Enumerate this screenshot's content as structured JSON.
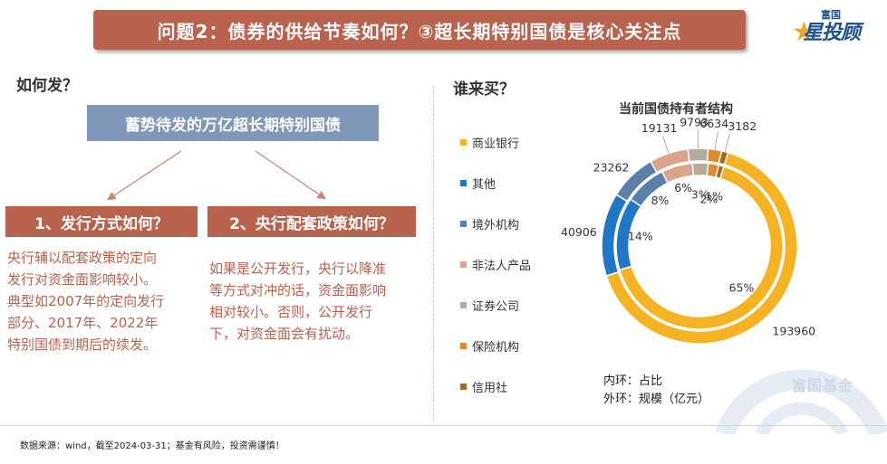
{
  "header": {
    "title": "问题2：债券的供给节奏如何？③超长期特别国债是核心关注点",
    "logo_small": "富国",
    "logo_main": "星投顾"
  },
  "left": {
    "heading": "如何发？",
    "top_box": "蓄势待发的万亿超长期特别国债",
    "box1": "1、发行方式如何？",
    "box2": "2、央行配套政策如何？",
    "text1_lines": [
      "央行辅以配套政策的定向",
      "发行对资金面影响较小。",
      "典型如2007年的定向发行",
      "部分、2017年、2022年",
      "特别国债到期后的续发。"
    ],
    "text2_lines": [
      "如果是公开发行，央行以降准",
      "等方式对冲的话，资金面影响",
      "相对较小。否则，公开发行",
      "下，对资金面会有扰动。"
    ]
  },
  "right": {
    "heading": "谁来买？",
    "inner_note": "内环：占比",
    "outer_note": "外环：规模（亿元）"
  },
  "watermark": "富国基金",
  "footer": "数据来源：wind，截至2024-03-31；基金有风险，投资需谨慎！",
  "colors": {
    "accent_red": "#b9624e",
    "accent_blue": "#7f97b8"
  },
  "chart_data": {
    "type": "donut",
    "title": "当前国债持有者结构",
    "categories": [
      "商业银行",
      "其他",
      "境外机构",
      "非法人产品",
      "证券公司",
      "保险机构",
      "信用社"
    ],
    "colors": [
      "#f5b324",
      "#1f77c8",
      "#5b7fa8",
      "#d9a58a",
      "#b5ab9c",
      "#e08a2e",
      "#a86a1e"
    ],
    "inner_ring": {
      "label": "占比",
      "values_pct": [
        65,
        14,
        8,
        6,
        3,
        2,
        1
      ],
      "value_labels": [
        "65%",
        "14%",
        "8%",
        "6%",
        "3%",
        "2%",
        "1%"
      ]
    },
    "outer_ring": {
      "label": "规模（亿元）",
      "values": [
        193960,
        40906,
        23262,
        19131,
        9793,
        6634,
        3182
      ],
      "value_labels": [
        "193960",
        "40906",
        "23262",
        "19131",
        "9793",
        "6634",
        "3182"
      ]
    }
  }
}
